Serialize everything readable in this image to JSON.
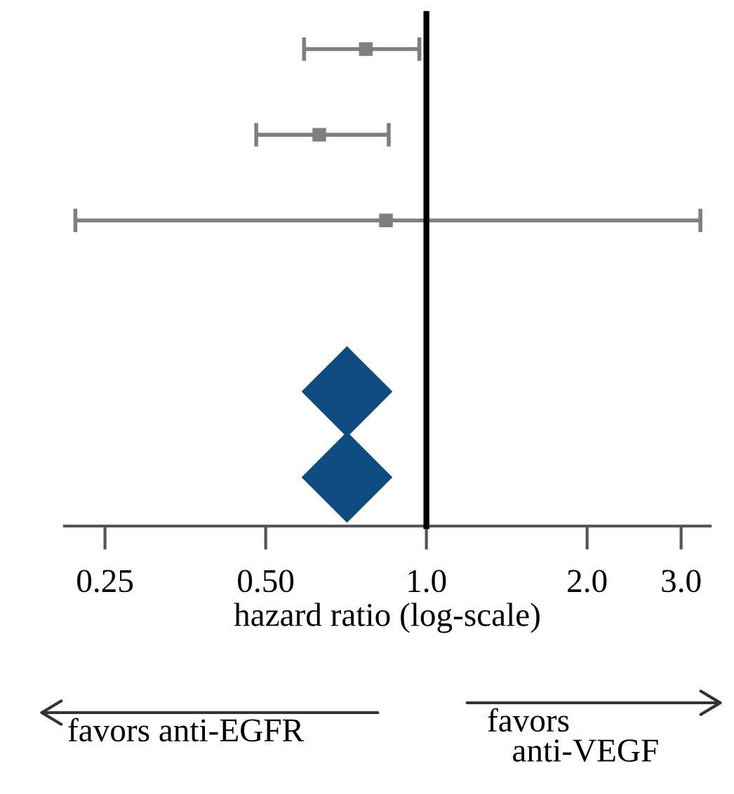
{
  "chart_data": {
    "type": "scatter",
    "orientation": "horizontal",
    "categories": [
      null,
      null,
      null,
      null,
      null,
      null
    ],
    "series": [
      {
        "type": "scatter",
        "color": "#7f7f7f",
        "marker": "square",
        "values": [
          0.77,
          0.63,
          0.84,
          null,
          null,
          null
        ],
        "errors": [
          [
            0.59,
            0.97
          ],
          [
            0.48,
            0.85
          ],
          [
            0.22,
            3.26
          ],
          null,
          null,
          null
        ]
      },
      {
        "type": "scatter",
        "color": "#0f4c81",
        "marker": "diamond",
        "values": [
          null,
          null,
          null,
          null,
          0.71,
          0.71
        ]
      }
    ],
    "xlabel": "hazard ratio (log-scale)",
    "log": "x",
    "xlim": [
      0.21,
      3.4
    ],
    "xticks": [
      {
        "value": 0.25,
        "label": "0.25"
      },
      {
        "value": 0.5,
        "label": "0.50"
      },
      {
        "value": 1.0,
        "label": "1.0"
      },
      {
        "value": 2.0,
        "label": "2.0"
      },
      {
        "value": 3.0,
        "label": "3.0"
      }
    ],
    "ref_lines": [
      {
        "axis": "x",
        "value": 1.0,
        "color": "#000000"
      }
    ],
    "tick_labels": "x",
    "grid": false,
    "legend": false,
    "annotations": [
      "favors anti-EGFR",
      "favors\n   anti-VEGF"
    ]
  }
}
